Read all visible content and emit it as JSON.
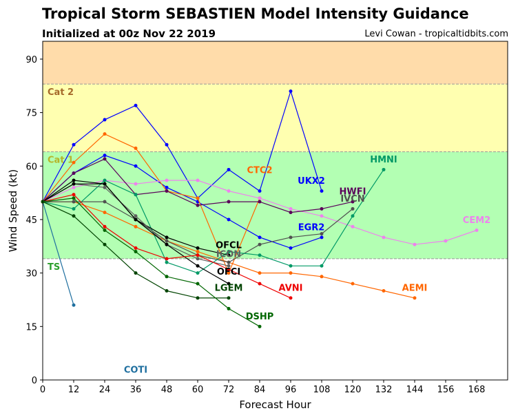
{
  "header": {
    "title": "Tropical Storm SEBASTIEN Model Intensity Guidance",
    "subtitle": "Initialized at 00z Nov 22 2019",
    "credit": "Levi Cowan - tropicaltidbits.com"
  },
  "chart_data": {
    "type": "line",
    "xlabel": "Forecast Hour",
    "ylabel": "Wind Speed (kt)",
    "xlim": [
      0,
      180
    ],
    "ylim": [
      0,
      95
    ],
    "xticks": [
      0,
      12,
      24,
      36,
      48,
      60,
      72,
      84,
      96,
      108,
      120,
      132,
      144,
      156,
      168
    ],
    "yticks": [
      0,
      15,
      30,
      45,
      60,
      75,
      90
    ],
    "bands": [
      {
        "label": "TS",
        "from": 34,
        "to": 64,
        "color": "#b3ffb3",
        "label_color": "#2ca02c"
      },
      {
        "label": "Cat 1",
        "from": 64,
        "to": 83,
        "color": "#ffffb0",
        "label_color": "#b5b52a"
      },
      {
        "label": "Cat 2",
        "from": 83,
        "to": 95,
        "color": "#ffdcaa",
        "label_color": "#a66a2a"
      }
    ],
    "series": [
      {
        "name": "COTI",
        "color": "#1f6f9f",
        "x": [
          0,
          12
        ],
        "y": [
          50,
          21
        ],
        "label_pos": [
          36,
          2
        ]
      },
      {
        "name": "UKX2",
        "color": "#0000ff",
        "x": [
          0,
          12,
          24,
          36,
          48,
          60,
          72,
          84,
          96,
          108
        ],
        "y": [
          50,
          66,
          73,
          77,
          66,
          51,
          59,
          53,
          81,
          53
        ],
        "label_pos": [
          104,
          55
        ]
      },
      {
        "name": "EGR2",
        "color": "#0000ff",
        "x": [
          0,
          12,
          24,
          36,
          48,
          60,
          72,
          84,
          96,
          108
        ],
        "y": [
          50,
          58,
          63,
          60,
          54,
          50,
          45,
          40,
          37,
          40
        ],
        "label_pos": [
          104,
          42
        ]
      },
      {
        "name": "CTC2",
        "color": "#ff6600",
        "x": [
          0,
          12,
          24,
          36,
          48,
          60,
          72,
          84
        ],
        "y": [
          50,
          61,
          69,
          65,
          53,
          51,
          30,
          51
        ],
        "label_pos": [
          84,
          58
        ]
      },
      {
        "name": "AEMI",
        "color": "#ff6600",
        "x": [
          0,
          12,
          24,
          36,
          48,
          60,
          72,
          84,
          96,
          108,
          120,
          132,
          144
        ],
        "y": [
          50,
          50,
          47,
          43,
          39,
          36,
          33,
          30,
          30,
          29,
          27,
          25,
          23
        ],
        "label_pos": [
          144,
          25
        ]
      },
      {
        "name": "CEM2",
        "color": "#ee82ee",
        "x": [
          0,
          12,
          24,
          36,
          48,
          60,
          72,
          84,
          96,
          108,
          120,
          132,
          144,
          156,
          168
        ],
        "y": [
          50,
          54,
          56,
          55,
          56,
          56,
          53,
          51,
          48,
          46,
          43,
          40,
          38,
          39,
          42
        ],
        "label_pos": [
          168,
          44
        ]
      },
      {
        "name": "HWFI",
        "color": "#5a005a",
        "x": [
          0,
          12,
          24,
          36,
          48,
          60,
          72,
          84,
          96,
          108,
          120
        ],
        "y": [
          50,
          58,
          62,
          52,
          53,
          49,
          50,
          50,
          47,
          48,
          50
        ],
        "label_pos": [
          120,
          52
        ]
      },
      {
        "name": "IVCN",
        "color": "#505050",
        "x": [
          0,
          12,
          24,
          36,
          48,
          60,
          72,
          84,
          96,
          108,
          120
        ],
        "y": [
          50,
          50,
          50,
          45,
          39,
          35,
          33,
          38,
          40,
          41,
          48
        ],
        "label_pos": [
          120,
          50
        ]
      },
      {
        "name": "HMNI",
        "color": "#009966",
        "x": [
          0,
          12,
          24,
          36,
          48,
          60,
          72,
          84,
          96,
          108,
          120,
          132
        ],
        "y": [
          50,
          48,
          56,
          52,
          33,
          30,
          36,
          35,
          32,
          32,
          46,
          59
        ],
        "label_pos": [
          132,
          61
        ]
      },
      {
        "name": "OFCL",
        "color": "#000000",
        "x": [
          0,
          12,
          24,
          36,
          48,
          60,
          72
        ],
        "y": [
          50,
          56,
          55,
          45,
          40,
          37,
          35
        ],
        "label_pos": [
          72,
          37
        ]
      },
      {
        "name": "ICON",
        "color": "#606060",
        "x": [
          0,
          12,
          24,
          36,
          48,
          60,
          72
        ],
        "y": [
          50,
          55,
          54,
          46,
          38,
          34,
          32
        ],
        "label_pos": [
          72,
          34.5
        ]
      },
      {
        "name": "OFCI",
        "color": "#000000",
        "x": [
          0,
          12,
          24,
          36,
          48,
          60,
          72
        ],
        "y": [
          50,
          55,
          55,
          45,
          38,
          32,
          27
        ],
        "label_pos": [
          72,
          29.5
        ]
      },
      {
        "name": "LGEM",
        "color": "#004400",
        "x": [
          0,
          12,
          24,
          36,
          48,
          60,
          72
        ],
        "y": [
          50,
          46,
          38,
          30,
          25,
          23,
          23
        ],
        "label_pos": [
          72,
          25
        ]
      },
      {
        "name": "AVNI",
        "color": "#ee0000",
        "x": [
          0,
          12,
          24,
          36,
          48,
          60,
          72,
          84,
          96
        ],
        "y": [
          50,
          52,
          43,
          37,
          34,
          35,
          31,
          27,
          23
        ],
        "label_pos": [
          96,
          25
        ]
      },
      {
        "name": "DSHP",
        "color": "#006600",
        "x": [
          0,
          12,
          24,
          36,
          48,
          60,
          72,
          84
        ],
        "y": [
          50,
          51,
          42,
          36,
          29,
          27,
          20,
          15
        ],
        "label_pos": [
          84,
          17
        ]
      }
    ]
  }
}
